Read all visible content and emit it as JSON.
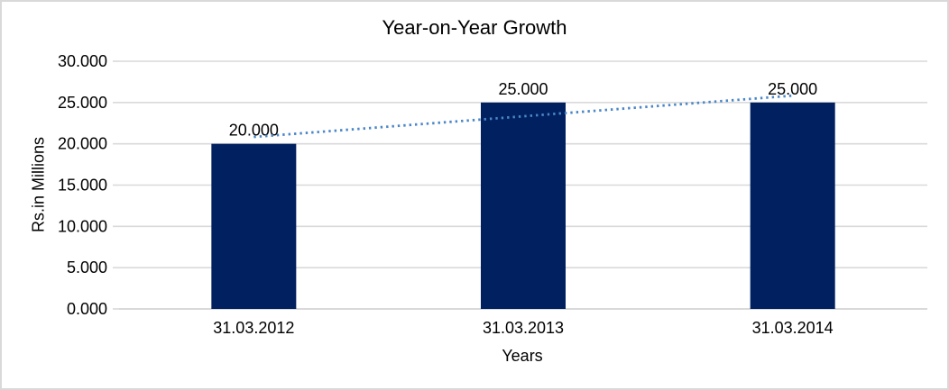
{
  "chart_data": {
    "type": "bar",
    "title": "Year-on-Year Growth",
    "xlabel": "Years",
    "ylabel": "Rs.in Millions",
    "categories": [
      "31.03.2012",
      "31.03.2013",
      "31.03.2014"
    ],
    "values": [
      20000,
      25000,
      25000
    ],
    "data_labels": [
      "20.000",
      "25.000",
      "25.000"
    ],
    "ylim": [
      0,
      30000
    ],
    "ytick_step": 5000,
    "ytick_labels": [
      "0.000",
      "5.000",
      "10.000",
      "15.000",
      "20.000",
      "25.000",
      "30.000"
    ],
    "grid": true,
    "legend": "none",
    "bar_color": "#002060",
    "gridline_color": "#D9D9D9",
    "text_color": "#000000",
    "background_color": "#FFFFFF",
    "border_color": "#D9D9D9",
    "trendline": {
      "type": "linear",
      "style": "dotted",
      "color": "#4A86C8",
      "start_value": 20833,
      "end_value": 25833
    }
  }
}
